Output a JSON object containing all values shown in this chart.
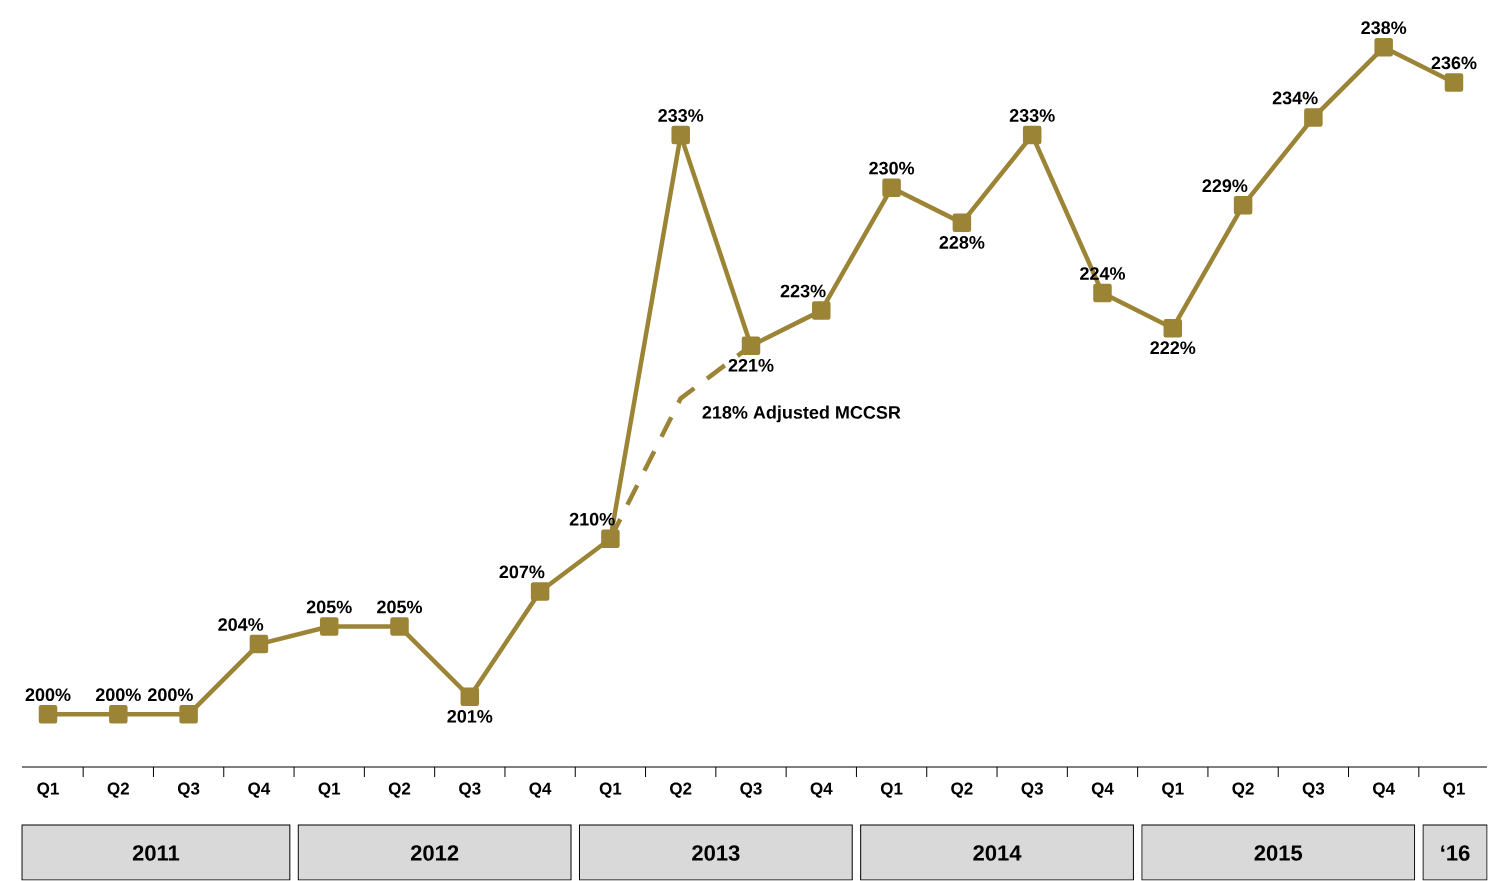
{
  "chart_data": {
    "type": "line",
    "categories": [
      "Q1",
      "Q2",
      "Q3",
      "Q4",
      "Q1",
      "Q2",
      "Q3",
      "Q4",
      "Q1",
      "Q2",
      "Q3",
      "Q4",
      "Q1",
      "Q2",
      "Q3",
      "Q4",
      "Q1",
      "Q2",
      "Q3",
      "Q4",
      "Q1"
    ],
    "series": [
      {
        "color": "#9c8436",
        "marker": "square",
        "line_style": "solid",
        "values": [
          200,
          200,
          200,
          204,
          205,
          205,
          201,
          207,
          210,
          233,
          221,
          223,
          230,
          228,
          233,
          224,
          222,
          229,
          234,
          238,
          236
        ],
        "value_labels": [
          "200%",
          "200%",
          "200%",
          "204%",
          "205%",
          "205%",
          "201%",
          "207%",
          "210%",
          "233%",
          "221%",
          "223%",
          "230%",
          "228%",
          "233%",
          "224%",
          "222%",
          "229%",
          "234%",
          "238%",
          "236%"
        ]
      },
      {
        "color": "#9c8436",
        "marker": "none",
        "line_style": "dashed",
        "values": [
          null,
          null,
          null,
          null,
          null,
          null,
          null,
          null,
          210,
          218,
          221,
          null,
          null,
          null,
          null,
          null,
          null,
          null,
          null,
          null,
          null
        ],
        "value_labels": [
          null,
          null,
          null,
          null,
          null,
          null,
          null,
          null,
          null,
          "218% Adjusted MCCSR",
          null,
          null,
          null,
          null,
          null,
          null,
          null,
          null,
          null,
          null,
          null
        ]
      }
    ],
    "annotations": [
      "2011",
      "2012",
      "2013",
      "2014",
      "2015",
      "‘16"
    ]
  }
}
